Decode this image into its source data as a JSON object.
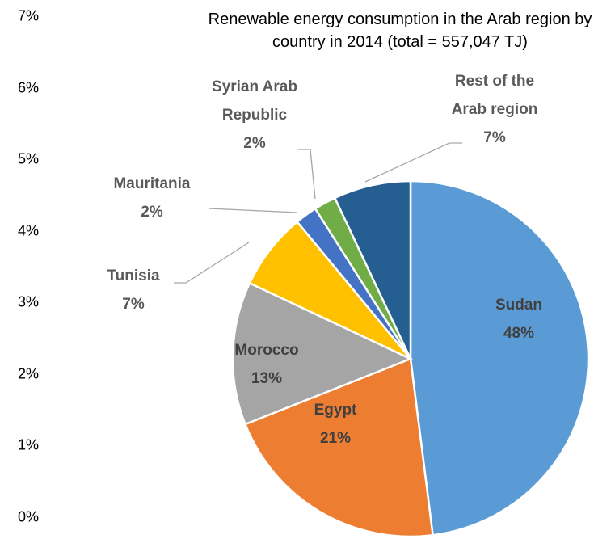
{
  "chart_data": {
    "type": "pie",
    "title": "Renewable energy consumption in the Arab region by country in 2014 (total = 557,047 TJ)",
    "categories": [
      "Sudan",
      "Egypt",
      "Morocco",
      "Tunisia",
      "Mauritania",
      "Syrian Arab Republic",
      "Rest of the Arab region"
    ],
    "values": [
      48,
      21,
      13,
      7,
      2,
      2,
      7
    ],
    "value_labels": [
      "48%",
      "21%",
      "13%",
      "7%",
      "2%",
      "2%",
      "7%"
    ],
    "colors": [
      "#5b9bd5",
      "#ed7d31",
      "#a5a5a5",
      "#ffc000",
      "#4472c4",
      "#70ad47",
      "#255e91"
    ],
    "ylim": [
      0,
      7
    ],
    "yticks": [
      {
        "value": 0,
        "label": "0%"
      },
      {
        "value": 1,
        "label": "1%"
      },
      {
        "value": 2,
        "label": "2%"
      },
      {
        "value": 3,
        "label": "3%"
      },
      {
        "value": 4,
        "label": "4%"
      },
      {
        "value": 5,
        "label": "5%"
      },
      {
        "value": 6,
        "label": "6%"
      },
      {
        "value": 7,
        "label": "7%"
      }
    ]
  }
}
